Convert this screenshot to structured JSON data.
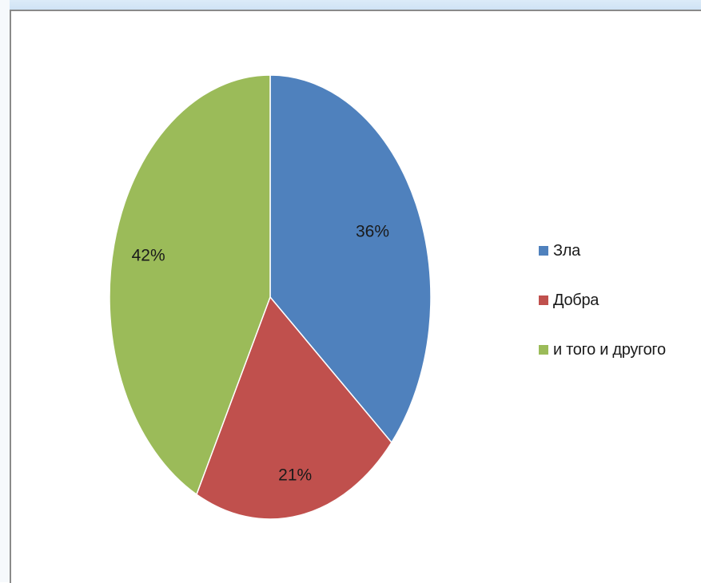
{
  "chart_data": {
    "type": "pie",
    "title": "",
    "slices": [
      {
        "label": "Зла",
        "value": 36,
        "display": "36%",
        "color": "#4f81bd"
      },
      {
        "label": "Добра",
        "value": 21,
        "display": "21%",
        "color": "#c0504d"
      },
      {
        "label": "и того и другого",
        "value": 42,
        "display": "42%",
        "color": "#9bbb59"
      }
    ],
    "legend_position": "right",
    "start_angle_deg": 0,
    "direction": "clockwise"
  }
}
